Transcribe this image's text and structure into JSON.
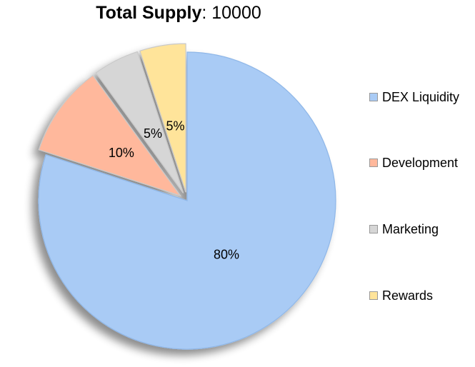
{
  "chart_data": {
    "type": "pie",
    "title_bold": "Total Supply",
    "title_rest": ": 10000",
    "categories": [
      "DEX Liquidity",
      "Development",
      "Marketing",
      "Rewards"
    ],
    "values": [
      80,
      10,
      5,
      5
    ],
    "labels": [
      "80%",
      "10%",
      "5%",
      "5%"
    ],
    "colors": [
      "#a9cbf5",
      "#ffb89c",
      "#d6d6d6",
      "#ffe49a"
    ],
    "legend_position": "right",
    "exploded": true
  }
}
